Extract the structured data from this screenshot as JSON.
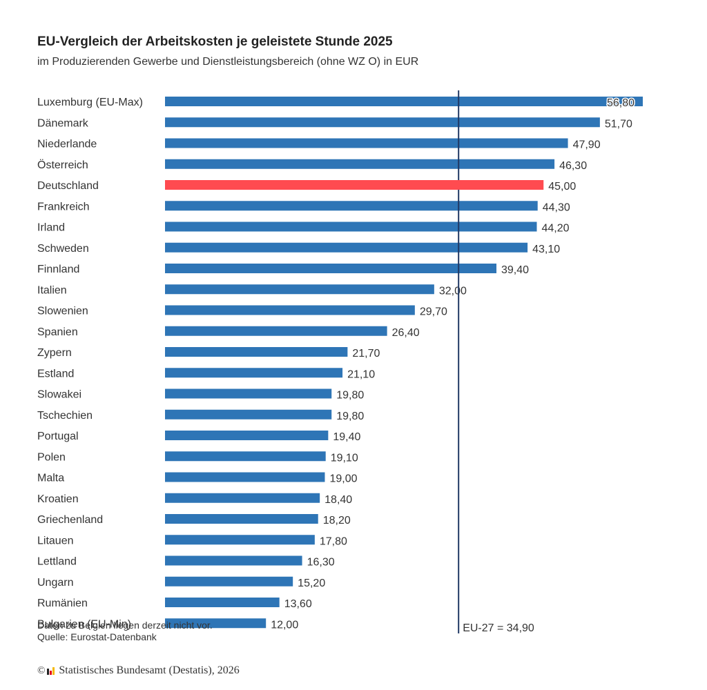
{
  "header": {
    "title": "EU-Vergleich der Arbeitskosten je geleistete Stunde 2025",
    "subtitle": "im Produzierenden Gewerbe und Dienstleistungsbereich (ohne WZ O) in EUR"
  },
  "colors": {
    "bar": "#2E75B6",
    "highlight": "#FF4B50",
    "reference_line": "#1F3864",
    "text": "#333333"
  },
  "chart_data": {
    "type": "bar",
    "orientation": "horizontal",
    "title": "EU-Vergleich der Arbeitskosten je geleistete Stunde 2025",
    "subtitle": "im Produzierenden Gewerbe und Dienstleistungsbereich (ohne WZ O) in EUR",
    "xlabel": "",
    "ylabel": "",
    "unit": "EUR",
    "xlim": [
      0,
      56.8
    ],
    "grid": false,
    "legend": "none",
    "highlight_category": "Deutschland",
    "categories": [
      "Luxemburg (EU-Max)",
      "Dänemark",
      "Niederlande",
      "Österreich",
      "Deutschland",
      "Frankreich",
      "Irland",
      "Schweden",
      "Finnland",
      "Italien",
      "Slowenien",
      "Spanien",
      "Zypern",
      "Estland",
      "Slowakei",
      "Tschechien",
      "Portugal",
      "Polen",
      "Malta",
      "Kroatien",
      "Griechenland",
      "Litauen",
      "Lettland",
      "Ungarn",
      "Rumänien",
      "Bulgarien (EU-Min)"
    ],
    "values": [
      56.8,
      51.7,
      47.9,
      46.3,
      45.0,
      44.3,
      44.2,
      43.1,
      39.4,
      32.0,
      29.7,
      26.4,
      21.7,
      21.1,
      19.8,
      19.8,
      19.4,
      19.1,
      19.0,
      18.4,
      18.2,
      17.8,
      16.3,
      15.2,
      13.6,
      12.0
    ],
    "value_labels": [
      "56,80",
      "51,70",
      "47,90",
      "46,30",
      "45,00",
      "44,30",
      "44,20",
      "43,10",
      "39,40",
      "32,00",
      "29,70",
      "26,40",
      "21,70",
      "21,10",
      "19,80",
      "19,80",
      "19,40",
      "19,10",
      "19,00",
      "18,40",
      "18,20",
      "17,80",
      "16,30",
      "15,20",
      "13,60",
      "12,00"
    ],
    "reference_line": {
      "label": "EU-27 = 34,90",
      "value": 34.9
    }
  },
  "notes": {
    "missing_data": "Daten zu Belgien liegen derzeit nicht vor.",
    "source": "Quelle: Eurostat-Datenbank"
  },
  "footer": {
    "copyright_symbol": "©",
    "logo_icon": "destatis-logo-icon",
    "text": "Statistisches Bundesamt (Destatis), 2026"
  }
}
